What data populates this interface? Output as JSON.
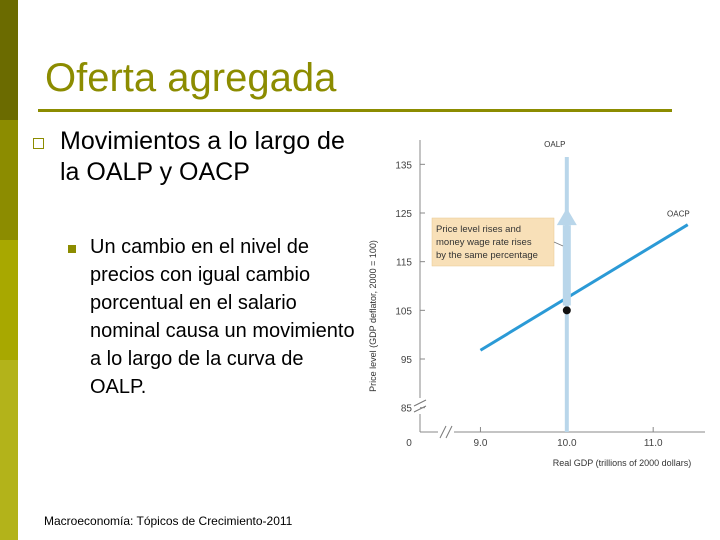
{
  "slide": {
    "title": "Oferta agregada",
    "bullet1": "Movimientos a lo largo de la OALP y OACP",
    "bullet2": "Un cambio en el nivel de precios con igual cambio porcentual en el salario nominal causa un movimiento a lo largo de la curva de OALP.",
    "footer": "Macroeconomía: Tópicos de Crecimiento-2011"
  },
  "colors": {
    "accent": "#8c8c00",
    "lras": "#b9d6ea",
    "sras": "#2b9ad6",
    "note_bg": "#f8e0b8"
  },
  "chart_data": {
    "type": "line",
    "xlabel": "Real GDP (trillions of 2000 dollars)",
    "ylabel": "Price level (GDP deflator, 2000 = 100)",
    "xlim": [
      8.3,
      11.6
    ],
    "ylim": [
      80,
      140
    ],
    "x_ticks": [
      9.0,
      10.0,
      11.0
    ],
    "x_tick_labels": [
      "9.0",
      "10.0",
      "11.0"
    ],
    "y_ticks": [
      85,
      95,
      105,
      115,
      125,
      135
    ],
    "y_tick_labels": [
      "85",
      "95",
      "105",
      "115",
      "125",
      "135"
    ],
    "origin_label": "0",
    "axis_breaks": true,
    "series": [
      {
        "name": "OALP",
        "type": "vertical",
        "x": 10.0,
        "y": [
          80,
          140
        ]
      },
      {
        "name": "OACP",
        "points": [
          [
            9.0,
            96.8
          ],
          [
            11.4,
            122.6
          ]
        ]
      }
    ],
    "point": {
      "x": 10.0,
      "y": 105
    },
    "arrow": {
      "x": 10.0,
      "from": 106,
      "to": 126
    },
    "annotation": "Price level rises and money wage rate rises by the same percentage"
  }
}
